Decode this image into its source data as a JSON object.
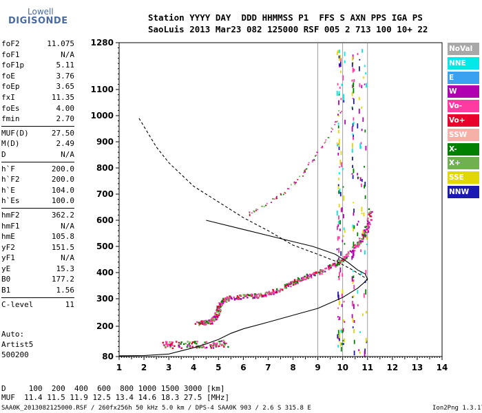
{
  "logo": {
    "top": "Lowell",
    "bottom": "DIGISONDE"
  },
  "header": {
    "line1": "Station YYYY DAY  DDD HHMMSS P1  FFS S AXN PPS IGA PS",
    "line2": "SaoLuis 2013 Mar23 082 125000 RSF 005 2 713 100 10+ 22"
  },
  "params": [
    {
      "group": [
        {
          "label": "foF2",
          "value": "11.075"
        },
        {
          "label": "foF1",
          "value": "N/A"
        },
        {
          "label": "foF1p",
          "value": "5.11"
        },
        {
          "label": "foE",
          "value": "3.76"
        },
        {
          "label": "foEp",
          "value": "3.65"
        },
        {
          "label": "fxI",
          "value": "11.35"
        },
        {
          "label": "foEs",
          "value": "4.00"
        },
        {
          "label": "fmin",
          "value": "2.70"
        }
      ]
    },
    {
      "group": [
        {
          "label": "MUF(D)",
          "value": "27.50"
        },
        {
          "label": "M(D)",
          "value": "2.49"
        },
        {
          "label": "D",
          "value": "N/A"
        }
      ]
    },
    {
      "group": [
        {
          "label": "h`F",
          "value": "200.0"
        },
        {
          "label": "h`F2",
          "value": "200.0"
        },
        {
          "label": "h`E",
          "value": "104.0"
        },
        {
          "label": "h`Es",
          "value": "100.0"
        }
      ]
    },
    {
      "group": [
        {
          "label": "hmF2",
          "value": "362.2"
        },
        {
          "label": "hmF1",
          "value": "N/A"
        },
        {
          "label": "hmE",
          "value": "105.8"
        },
        {
          "label": "yF2",
          "value": "151.5"
        },
        {
          "label": "yF1",
          "value": "N/A"
        },
        {
          "label": "yE",
          "value": "15.3"
        },
        {
          "label": "B0",
          "value": "177.2"
        },
        {
          "label": "B1",
          "value": "1.56"
        }
      ]
    },
    {
      "group": [
        {
          "label": "C-level",
          "value": "11"
        }
      ]
    }
  ],
  "auto": {
    "line1": "Auto:",
    "line2": "Artist5",
    "line3": "500200"
  },
  "legend": [
    {
      "label": "NoVal",
      "color": "#a8a8a8"
    },
    {
      "label": "NNE",
      "color": "#00e8e8"
    },
    {
      "label": "E",
      "color": "#3aa0f0"
    },
    {
      "label": "W",
      "color": "#b000b0"
    },
    {
      "label": "Vo-",
      "color": "#ff3aa0"
    },
    {
      "label": "Vo+",
      "color": "#e8002a"
    },
    {
      "label": "SSW",
      "color": "#f5b0a8"
    },
    {
      "label": "X-",
      "color": "#008000"
    },
    {
      "label": "X+",
      "color": "#70b050"
    },
    {
      "label": "SSE",
      "color": "#e0d800"
    },
    {
      "label": "NNW",
      "color": "#1a1ab0"
    }
  ],
  "bottom": {
    "d_line": "D     100  200  400  600  800 1000 1500 3000 [km]",
    "muf_line": "MUF  11.4 11.5 11.9 12.5 13.4 14.6 18.3 27.5 [MHz]",
    "footer_left": "SAA0K_2013082125000.RSF / 260fx256h 50 kHz 5.0 km / DPS-4 SAA0K 903 / 2.6 S 315.8 E",
    "footer_right": "Ion2Png 1.3.17"
  },
  "chart_data": {
    "type": "scatter",
    "xlim": [
      1,
      14
    ],
    "ylim": [
      80,
      1280
    ],
    "x_ticks": [
      "1",
      "2",
      "3",
      "4",
      "5",
      "6",
      "7",
      "8",
      "9",
      "10",
      "11",
      "12",
      "13",
      "14"
    ],
    "y_ticks": [
      "80",
      "200",
      "300",
      "400",
      "500",
      "600",
      "700",
      "800",
      "900",
      "1000",
      "1100",
      "1280"
    ],
    "grid_x": [
      9,
      10,
      11
    ],
    "ionogram_trace": {
      "f_layer": [
        [
          4.1,
          213
        ],
        [
          4.4,
          215
        ],
        [
          4.7,
          220
        ],
        [
          4.9,
          240
        ],
        [
          5.0,
          270
        ],
        [
          5.1,
          293
        ],
        [
          5.4,
          305
        ],
        [
          6,
          310
        ],
        [
          6.5,
          313
        ],
        [
          7,
          322
        ],
        [
          7.5,
          340
        ],
        [
          8,
          365
        ],
        [
          8.5,
          385
        ],
        [
          9,
          403
        ],
        [
          9.5,
          425
        ],
        [
          10,
          455
        ],
        [
          10.5,
          500
        ],
        [
          10.8,
          540
        ],
        [
          11,
          580
        ],
        [
          11.1,
          640
        ]
      ],
      "f_layer_extra": [
        [
          6.2,
          625
        ],
        [
          6.5,
          640
        ],
        [
          7,
          665
        ],
        [
          7.5,
          700
        ],
        [
          8,
          740
        ],
        [
          8.3,
          770
        ],
        [
          8.5,
          800
        ],
        [
          8.8,
          835
        ],
        [
          9.2,
          895
        ],
        [
          9.6,
          960
        ],
        [
          9.9,
          1020
        ]
      ],
      "es_echoes": [
        [
          2.8,
          125
        ],
        [
          3,
          130
        ],
        [
          3.5,
          128
        ],
        [
          4,
          132
        ],
        [
          4.5,
          128
        ],
        [
          5,
          132
        ],
        [
          5.3,
          135
        ]
      ]
    },
    "profile_solid": [
      [
        1,
        83
      ],
      [
        2,
        84
      ],
      [
        3,
        90
      ],
      [
        3.6,
        105
      ],
      [
        4,
        115
      ],
      [
        4.5,
        130
      ],
      [
        5,
        148
      ],
      [
        5.5,
        172
      ],
      [
        6,
        190
      ],
      [
        7,
        215
      ],
      [
        8,
        240
      ],
      [
        9,
        265
      ],
      [
        10,
        305
      ],
      [
        10.6,
        340
      ],
      [
        10.9,
        365
      ],
      [
        11.0,
        375
      ],
      [
        10.9,
        395
      ],
      [
        10.6,
        410
      ],
      [
        10.2,
        440
      ],
      [
        9.7,
        470
      ],
      [
        8.8,
        500
      ],
      [
        7.5,
        530
      ],
      [
        6,
        565
      ],
      [
        4.5,
        600
      ]
    ],
    "profile_dashed": [
      [
        1.8,
        990
      ],
      [
        2.5,
        880
      ],
      [
        3,
        820
      ],
      [
        4,
        730
      ],
      [
        5,
        670
      ],
      [
        6,
        610
      ],
      [
        7,
        560
      ],
      [
        8,
        505
      ],
      [
        9,
        470
      ],
      [
        9.8,
        440
      ],
      [
        10.4,
        410
      ],
      [
        10.9,
        380
      ],
      [
        11.0,
        370
      ]
    ]
  }
}
